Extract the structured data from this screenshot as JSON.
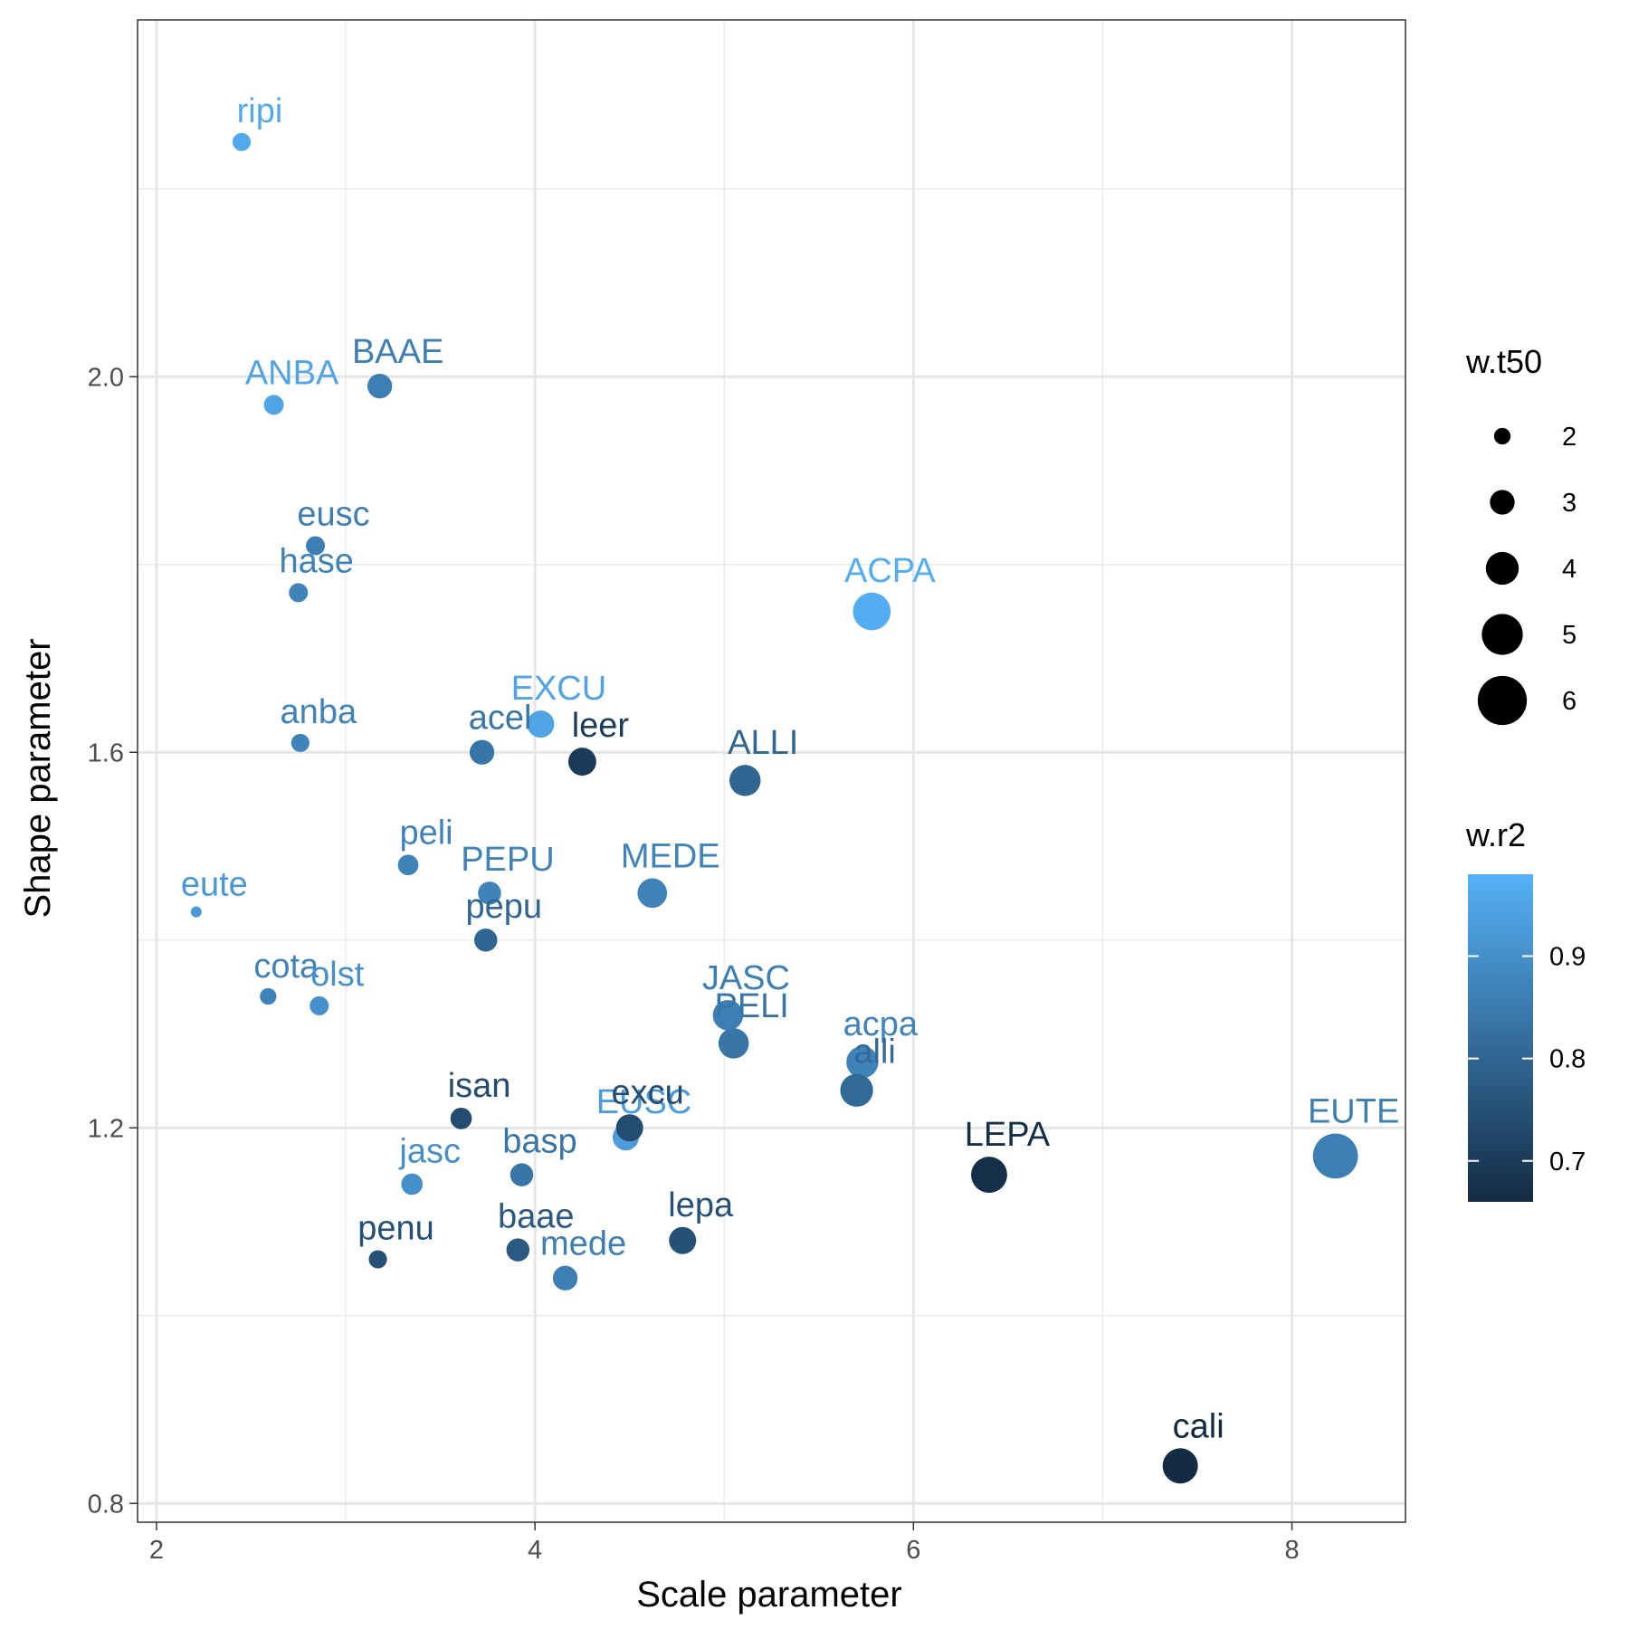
{
  "chart_data": {
    "type": "scatter",
    "xlabel": "Scale parameter",
    "ylabel": "Shape parameter",
    "xlim": [
      1.9,
      8.6
    ],
    "ylim": [
      0.78,
      2.38
    ],
    "x_ticks": [
      2,
      4,
      6,
      8
    ],
    "x_tick_labels": [
      "2",
      "4",
      "6",
      "8"
    ],
    "y_ticks": [
      0.8,
      1.2,
      1.6,
      2.0
    ],
    "y_tick_labels": [
      "0.8",
      "1.2",
      "1.6",
      "2.0"
    ],
    "grid": true,
    "legend_placement": "right",
    "size_legend": {
      "title": "w.t50",
      "values": [
        2,
        3,
        4,
        5,
        6
      ],
      "labels": [
        "2",
        "3",
        "4",
        "5",
        "6"
      ]
    },
    "color_legend": {
      "title": "w.r2",
      "range": [
        0.66,
        0.98
      ],
      "ticks": [
        0.7,
        0.8,
        0.9
      ],
      "tick_labels": [
        "0.7",
        "0.8",
        "0.9"
      ],
      "low_color": "#132B43",
      "high_color": "#56B1F7"
    },
    "points": [
      {
        "label": "ripi",
        "x": 2.45,
        "y": 2.25,
        "size": 2.2,
        "color": 0.96
      },
      {
        "label": "ANBA",
        "x": 2.62,
        "y": 1.97,
        "size": 2.4,
        "color": 0.95
      },
      {
        "label": "BAAE",
        "x": 3.18,
        "y": 1.99,
        "size": 3.0,
        "color": 0.86
      },
      {
        "label": "eusc",
        "x": 2.84,
        "y": 1.82,
        "size": 2.3,
        "color": 0.86
      },
      {
        "label": "hase",
        "x": 2.75,
        "y": 1.77,
        "size": 2.3,
        "color": 0.87
      },
      {
        "label": "ACPA",
        "x": 5.78,
        "y": 1.75,
        "size": 4.6,
        "color": 0.97
      },
      {
        "label": "anba",
        "x": 2.76,
        "y": 1.61,
        "size": 2.2,
        "color": 0.87
      },
      {
        "label": "acel",
        "x": 3.72,
        "y": 1.6,
        "size": 3.0,
        "color": 0.84
      },
      {
        "label": "EXCU",
        "x": 4.03,
        "y": 1.63,
        "size": 3.3,
        "color": 0.95
      },
      {
        "label": "leer",
        "x": 4.25,
        "y": 1.59,
        "size": 3.4,
        "color": 0.7
      },
      {
        "label": "ALLI",
        "x": 5.11,
        "y": 1.57,
        "size": 3.8,
        "color": 0.8
      },
      {
        "label": "peli",
        "x": 3.33,
        "y": 1.48,
        "size": 2.5,
        "color": 0.87
      },
      {
        "label": "PEPU",
        "x": 3.76,
        "y": 1.45,
        "size": 2.8,
        "color": 0.87
      },
      {
        "label": "MEDE",
        "x": 4.62,
        "y": 1.45,
        "size": 3.6,
        "color": 0.87
      },
      {
        "label": "pepu",
        "x": 3.74,
        "y": 1.4,
        "size": 2.8,
        "color": 0.8
      },
      {
        "label": "eute",
        "x": 2.21,
        "y": 1.43,
        "size": 1.3,
        "color": 0.92
      },
      {
        "label": "cota",
        "x": 2.59,
        "y": 1.34,
        "size": 2.0,
        "color": 0.87
      },
      {
        "label": "olst",
        "x": 2.86,
        "y": 1.33,
        "size": 2.3,
        "color": 0.9
      },
      {
        "label": "JASC",
        "x": 5.02,
        "y": 1.32,
        "size": 3.7,
        "color": 0.86
      },
      {
        "label": "PELI",
        "x": 5.05,
        "y": 1.29,
        "size": 3.7,
        "color": 0.84
      },
      {
        "label": "acpa",
        "x": 5.73,
        "y": 1.27,
        "size": 3.9,
        "color": 0.87
      },
      {
        "label": "alli",
        "x": 5.7,
        "y": 1.24,
        "size": 4.0,
        "color": 0.81
      },
      {
        "label": "isan",
        "x": 3.61,
        "y": 1.21,
        "size": 2.6,
        "color": 0.74
      },
      {
        "label": "EUSC",
        "x": 4.48,
        "y": 1.19,
        "size": 3.2,
        "color": 0.93
      },
      {
        "label": "excu",
        "x": 4.5,
        "y": 1.2,
        "size": 3.3,
        "color": 0.74
      },
      {
        "label": "LEPA",
        "x": 6.4,
        "y": 1.15,
        "size": 4.4,
        "color": 0.67
      },
      {
        "label": "EUTE",
        "x": 8.23,
        "y": 1.17,
        "size": 5.5,
        "color": 0.86
      },
      {
        "label": "jasc",
        "x": 3.35,
        "y": 1.14,
        "size": 2.6,
        "color": 0.9
      },
      {
        "label": "basp",
        "x": 3.93,
        "y": 1.15,
        "size": 2.8,
        "color": 0.84
      },
      {
        "label": "baae",
        "x": 3.91,
        "y": 1.07,
        "size": 2.8,
        "color": 0.77
      },
      {
        "label": "lepa",
        "x": 4.78,
        "y": 1.08,
        "size": 3.3,
        "color": 0.75
      },
      {
        "label": "mede",
        "x": 4.16,
        "y": 1.04,
        "size": 3.0,
        "color": 0.86
      },
      {
        "label": "penu",
        "x": 3.17,
        "y": 1.06,
        "size": 2.2,
        "color": 0.75
      },
      {
        "label": "cali",
        "x": 7.41,
        "y": 0.84,
        "size": 4.3,
        "color": 0.66
      }
    ]
  }
}
